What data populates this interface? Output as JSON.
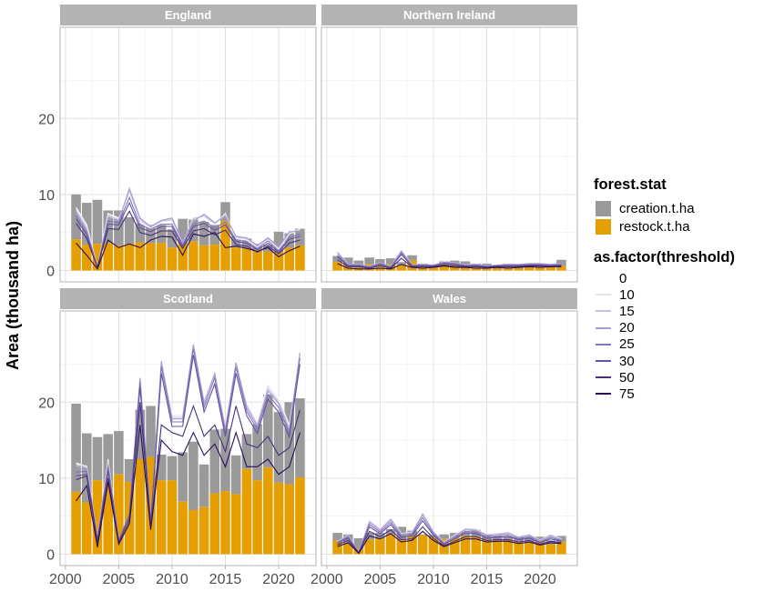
{
  "chart_data": {
    "type": "bar",
    "facets": [
      "England",
      "Northern Ireland",
      "Scotland",
      "Wales"
    ],
    "years": [
      2001,
      2002,
      2003,
      2004,
      2005,
      2006,
      2007,
      2008,
      2009,
      2010,
      2011,
      2012,
      2013,
      2014,
      2015,
      2016,
      2017,
      2018,
      2019,
      2020,
      2021,
      2022
    ],
    "x_ticks": [
      2000,
      2005,
      2010,
      2015,
      2020
    ],
    "y_ticks": [
      0,
      10,
      20
    ],
    "xlim": [
      1999.5,
      2023.5
    ],
    "ylim": [
      -1.5,
      32
    ],
    "ylabel": "Area (thousand ha)",
    "xlabel": "",
    "fill_legend": {
      "title": "forest.stat",
      "entries": [
        {
          "label": "creation.t.ha",
          "color": "#9a9a9a"
        },
        {
          "label": "restock.t.ha",
          "color": "#e69f00"
        }
      ]
    },
    "line_legend": {
      "title": "as.factor(threshold)",
      "entries": [
        {
          "label": "0",
          "color": "#ffffff"
        },
        {
          "label": "10",
          "color": "#e6e1f1"
        },
        {
          "label": "15",
          "color": "#c9c1e0"
        },
        {
          "label": "20",
          "color": "#a89cd0"
        },
        {
          "label": "25",
          "color": "#8576ba"
        },
        {
          "label": "30",
          "color": "#6552a4"
        },
        {
          "label": "50",
          "color": "#46307e"
        },
        {
          "label": "75",
          "color": "#2a0e5c"
        }
      ]
    },
    "panels": {
      "England": {
        "restock": [
          4.1,
          3.4,
          3.5,
          3.6,
          3.3,
          3.5,
          3.7,
          3.6,
          3.6,
          3.0,
          3.5,
          3.8,
          3.3,
          3.4,
          6.5,
          3.0,
          2.9,
          2.6,
          2.5,
          2.4,
          3.0,
          3.3
        ],
        "total": [
          10.0,
          8.9,
          9.3,
          7.9,
          7.9,
          7.0,
          6.2,
          6.0,
          6.0,
          5.4,
          6.8,
          6.7,
          6.4,
          6.0,
          9.0,
          4.5,
          4.2,
          3.5,
          3.4,
          5.1,
          4.9,
          5.5
        ],
        "lines": {
          "0": [
            8.3,
            6.0,
            0.4,
            7.5,
            6.9,
            10.0,
            6.3,
            5.5,
            6.3,
            6.5,
            3.5,
            7.0,
            7.0,
            6.0,
            7.5,
            4.2,
            4.0,
            3.0,
            4.0,
            2.8,
            4.8,
            5.5
          ],
          "10": [
            8.1,
            5.7,
            0.4,
            7.3,
            6.8,
            10.3,
            6.5,
            5.6,
            6.4,
            6.6,
            3.6,
            6.9,
            7.1,
            6.1,
            7.4,
            4.3,
            4.1,
            3.1,
            4.1,
            2.9,
            4.9,
            5.4
          ],
          "15": [
            7.9,
            5.5,
            0.4,
            7.1,
            6.7,
            10.5,
            6.7,
            5.7,
            6.5,
            6.7,
            3.7,
            6.8,
            7.2,
            6.2,
            7.3,
            4.4,
            4.2,
            3.2,
            4.2,
            3.0,
            5.0,
            5.3
          ],
          "20": [
            7.6,
            5.2,
            0.4,
            6.8,
            6.5,
            10.8,
            6.9,
            5.8,
            6.6,
            6.9,
            3.8,
            6.5,
            7.4,
            6.3,
            7.1,
            4.5,
            4.3,
            3.3,
            4.3,
            3.1,
            5.1,
            5.2
          ],
          "25": [
            7.2,
            5.0,
            0.4,
            6.5,
            6.3,
            9.6,
            6.0,
            5.4,
            6.1,
            6.1,
            3.4,
            6.1,
            6.5,
            5.6,
            6.4,
            4.0,
            3.8,
            2.9,
            3.9,
            2.6,
            4.3,
            4.8
          ],
          "30": [
            6.8,
            4.7,
            0.4,
            6.1,
            6.0,
            8.9,
            5.6,
            5.1,
            5.8,
            5.8,
            3.2,
            5.8,
            6.2,
            5.3,
            6.0,
            3.8,
            3.6,
            2.7,
            3.6,
            2.4,
            4.1,
            4.5
          ],
          "50": [
            6.2,
            4.2,
            0.4,
            5.5,
            5.4,
            7.8,
            5.0,
            4.6,
            5.2,
            5.2,
            2.9,
            5.2,
            5.5,
            4.7,
            5.3,
            3.4,
            3.2,
            2.4,
            3.2,
            2.2,
            3.6,
            4.0
          ],
          "75": [
            3.6,
            2.0,
            0.2,
            4.0,
            3.0,
            3.5,
            3.0,
            4.0,
            4.5,
            4.4,
            2.0,
            4.8,
            4.5,
            5.0,
            3.0,
            3.2,
            2.9,
            2.5,
            3.0,
            1.8,
            2.6,
            3.2
          ]
        }
      },
      "Northern Ireland": {
        "restock": [
          1.1,
          0.8,
          0.6,
          0.8,
          0.7,
          0.8,
          0.7,
          1.3,
          0.6,
          0.6,
          0.9,
          0.9,
          0.8,
          0.6,
          0.6,
          0.5,
          0.6,
          0.6,
          0.6,
          0.6,
          0.6,
          0.6
        ],
        "total": [
          1.9,
          1.7,
          1.3,
          1.7,
          1.5,
          1.6,
          1.1,
          2.0,
          0.9,
          0.8,
          1.2,
          1.3,
          1.2,
          0.9,
          0.9,
          0.7,
          0.9,
          0.8,
          0.7,
          0.8,
          0.8,
          1.4
        ],
        "lines": {
          "0": [
            2.6,
            0.8,
            0.8,
            0.5,
            1.0,
            0.5,
            2.7,
            0.7,
            0.8,
            0.7,
            1.1,
            1.0,
            0.7,
            0.8,
            0.6,
            0.7,
            0.8,
            0.8,
            0.9,
            0.9,
            0.8,
            0.9
          ],
          "10": [
            2.5,
            0.8,
            0.8,
            0.5,
            1.0,
            0.5,
            2.6,
            0.7,
            0.8,
            0.7,
            1.1,
            1.0,
            0.7,
            0.8,
            0.6,
            0.7,
            0.8,
            0.8,
            0.9,
            0.9,
            0.8,
            0.9
          ],
          "15": [
            2.4,
            0.8,
            0.8,
            0.5,
            1.0,
            0.5,
            2.6,
            0.7,
            0.8,
            0.7,
            1.1,
            1.0,
            0.7,
            0.8,
            0.6,
            0.7,
            0.8,
            0.8,
            0.9,
            0.9,
            0.8,
            0.9
          ],
          "20": [
            2.3,
            0.8,
            0.8,
            0.5,
            1.0,
            0.5,
            2.5,
            0.7,
            0.8,
            0.7,
            1.1,
            1.0,
            0.7,
            0.8,
            0.6,
            0.7,
            0.8,
            0.8,
            0.9,
            0.9,
            0.8,
            0.9
          ],
          "25": [
            2.0,
            0.7,
            0.7,
            0.4,
            0.9,
            0.4,
            2.3,
            0.6,
            0.7,
            0.6,
            1.0,
            0.9,
            0.6,
            0.7,
            0.5,
            0.6,
            0.7,
            0.7,
            0.8,
            0.8,
            0.7,
            0.8
          ],
          "30": [
            1.8,
            0.6,
            0.6,
            0.4,
            0.8,
            0.4,
            2.1,
            0.6,
            0.6,
            0.6,
            0.9,
            0.8,
            0.6,
            0.6,
            0.5,
            0.6,
            0.6,
            0.6,
            0.7,
            0.7,
            0.6,
            0.7
          ],
          "50": [
            1.4,
            0.5,
            0.5,
            0.3,
            0.6,
            0.3,
            1.6,
            0.5,
            0.5,
            0.5,
            0.7,
            0.6,
            0.5,
            0.5,
            0.4,
            0.5,
            0.5,
            0.5,
            0.6,
            0.6,
            0.5,
            0.6
          ],
          "75": [
            0.9,
            0.3,
            0.2,
            0.2,
            0.3,
            0.2,
            0.8,
            0.4,
            0.3,
            0.4,
            0.6,
            0.4,
            0.4,
            0.3,
            0.3,
            0.4,
            0.3,
            0.4,
            0.5,
            0.4,
            0.5,
            0.5
          ]
        }
      },
      "Scotland": {
        "restock": [
          8.2,
          6.8,
          9.7,
          9.4,
          10.5,
          9.5,
          12.5,
          12.8,
          9.7,
          9.7,
          6.9,
          5.8,
          6.2,
          8.0,
          8.3,
          7.9,
          11.2,
          9.7,
          11.4,
          9.4,
          9.2,
          10.1
        ],
        "total": [
          19.8,
          15.9,
          15.4,
          15.8,
          16.2,
          12.5,
          19.0,
          19.5,
          13.1,
          12.9,
          13.4,
          14.8,
          11.8,
          16.4,
          16.5,
          13.0,
          15.8,
          17.1,
          21.0,
          18.7,
          20.0,
          20.5
        ],
        "lines": {
          "0": [
            12.0,
            11.5,
            2.0,
            12.5,
            1.5,
            5.0,
            22.5,
            4.0,
            24.5,
            18.5,
            18.5,
            27.0,
            20.5,
            23.0,
            17.0,
            24.5,
            20.0,
            17.5,
            22.5,
            20.5,
            17.0,
            26.0
          ],
          "10": [
            11.8,
            11.6,
            2.0,
            12.3,
            1.6,
            5.1,
            22.8,
            4.1,
            25.0,
            18.2,
            18.3,
            27.2,
            20.3,
            23.4,
            16.8,
            24.8,
            19.8,
            17.2,
            22.2,
            20.2,
            16.8,
            26.2
          ],
          "15": [
            11.6,
            11.4,
            2.0,
            12.0,
            1.7,
            5.2,
            23.0,
            4.2,
            25.2,
            18.0,
            18.0,
            27.5,
            20.0,
            23.6,
            16.6,
            25.0,
            19.5,
            17.0,
            21.8,
            20.0,
            16.5,
            26.4
          ],
          "20": [
            11.2,
            11.2,
            2.0,
            11.8,
            1.8,
            5.3,
            23.2,
            4.3,
            25.4,
            17.8,
            17.8,
            27.6,
            19.8,
            23.8,
            16.4,
            25.2,
            19.2,
            16.8,
            21.5,
            19.8,
            16.3,
            26.5
          ],
          "25": [
            10.8,
            10.9,
            1.9,
            11.5,
            1.8,
            5.2,
            22.7,
            4.2,
            24.7,
            17.4,
            17.4,
            27.0,
            19.3,
            23.2,
            16.0,
            24.6,
            18.8,
            16.4,
            21.0,
            19.3,
            15.9,
            25.8
          ],
          "30": [
            10.3,
            10.5,
            1.8,
            11.0,
            1.7,
            5.0,
            22.0,
            4.0,
            23.8,
            16.8,
            16.8,
            26.2,
            18.7,
            22.4,
            15.5,
            23.8,
            18.2,
            15.9,
            20.4,
            18.7,
            15.4,
            25.0
          ],
          "50": [
            9.8,
            10.3,
            1.5,
            10.0,
            1.5,
            4.5,
            20.0,
            3.5,
            17.0,
            16.0,
            15.5,
            19.5,
            15.5,
            17.0,
            13.5,
            19.5,
            14.5,
            14.0,
            15.5,
            13.0,
            14.0,
            19.0
          ],
          "75": [
            7.0,
            9.0,
            0.9,
            9.5,
            1.3,
            4.0,
            17.0,
            3.2,
            15.0,
            13.5,
            13.0,
            16.0,
            13.0,
            14.5,
            11.5,
            16.0,
            11.5,
            11.5,
            12.5,
            10.5,
            11.5,
            16.0
          ]
        }
      },
      "Wales": {
        "restock": [
          1.8,
          1.5,
          0.7,
          1.9,
          2.1,
          2.6,
          1.9,
          2.4,
          2.5,
          2.2,
          2.0,
          2.1,
          2.4,
          2.3,
          1.9,
          1.8,
          1.9,
          1.7,
          1.5,
          1.7,
          1.3,
          1.6
        ],
        "total": [
          2.8,
          2.6,
          2.1,
          2.8,
          2.8,
          3.3,
          3.6,
          3.1,
          2.6,
          2.5,
          2.6,
          2.8,
          2.9,
          3.2,
          2.5,
          2.4,
          2.3,
          2.3,
          2.2,
          2.3,
          1.8,
          2.4
        ],
        "lines": {
          "0": [
            1.7,
            2.5,
            0.2,
            4.5,
            3.3,
            4.8,
            2.7,
            2.9,
            5.5,
            3.0,
            1.6,
            2.5,
            3.4,
            3.3,
            2.6,
            2.7,
            2.9,
            2.3,
            2.6,
            1.8,
            2.6,
            2.0
          ],
          "10": [
            1.7,
            2.5,
            0.2,
            4.4,
            3.3,
            4.7,
            2.7,
            2.9,
            5.4,
            3.0,
            1.6,
            2.5,
            3.4,
            3.3,
            2.6,
            2.7,
            2.9,
            2.3,
            2.6,
            1.8,
            2.6,
            2.0
          ],
          "15": [
            1.7,
            2.5,
            0.2,
            4.3,
            3.2,
            4.6,
            2.6,
            2.8,
            5.3,
            2.9,
            1.6,
            2.4,
            3.3,
            3.2,
            2.5,
            2.6,
            2.8,
            2.2,
            2.5,
            1.8,
            2.5,
            1.9
          ],
          "20": [
            1.6,
            2.4,
            0.2,
            4.2,
            3.1,
            4.5,
            2.6,
            2.8,
            5.2,
            2.9,
            1.5,
            2.4,
            3.2,
            3.1,
            2.5,
            2.6,
            2.7,
            2.2,
            2.5,
            1.7,
            2.4,
            1.9
          ],
          "25": [
            1.5,
            2.3,
            0.2,
            3.9,
            2.9,
            4.2,
            2.4,
            2.6,
            4.8,
            2.7,
            1.4,
            2.2,
            3.0,
            2.9,
            2.3,
            2.4,
            2.5,
            2.0,
            2.3,
            1.6,
            2.2,
            1.8
          ],
          "30": [
            1.4,
            2.1,
            0.2,
            3.6,
            2.7,
            3.9,
            2.2,
            2.4,
            4.4,
            2.5,
            1.3,
            2.0,
            2.8,
            2.7,
            2.1,
            2.2,
            2.3,
            1.9,
            2.1,
            1.5,
            2.0,
            1.7
          ],
          "50": [
            1.2,
            1.8,
            0.2,
            3.0,
            2.3,
            3.2,
            1.9,
            2.0,
            3.6,
            2.1,
            1.1,
            1.7,
            2.3,
            2.3,
            1.8,
            1.9,
            1.9,
            1.6,
            1.8,
            1.3,
            1.7,
            1.5
          ],
          "75": [
            1.0,
            1.5,
            0.1,
            2.4,
            2.0,
            2.7,
            1.6,
            1.8,
            3.0,
            1.8,
            1.0,
            1.5,
            2.0,
            2.0,
            1.6,
            1.7,
            1.7,
            1.4,
            1.6,
            1.2,
            1.5,
            1.4
          ]
        }
      }
    }
  }
}
